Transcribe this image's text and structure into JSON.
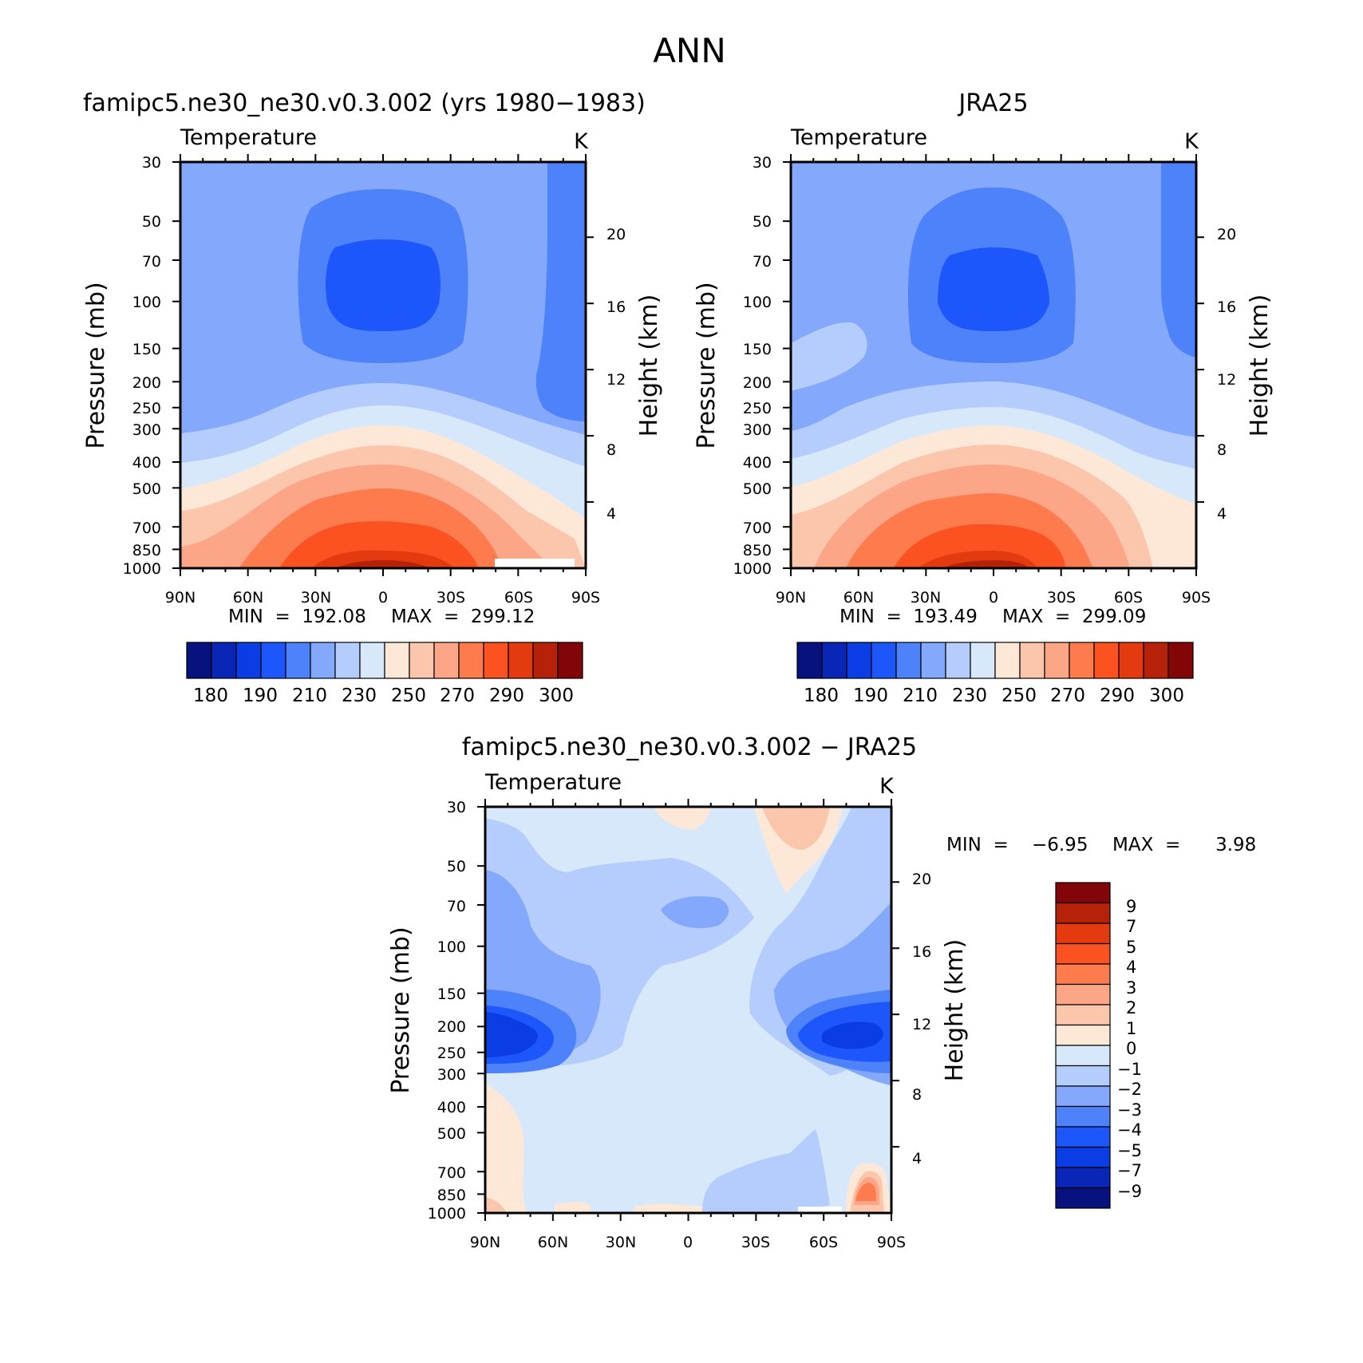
{
  "title": "ANN",
  "colors": {
    "warm": [
      "#fde8d8",
      "#fcc6ad",
      "#fca587",
      "#fd7b4d",
      "#fc5120",
      "#e33a10",
      "#b62109",
      "#820508"
    ],
    "cool": [
      "#d7e8fb",
      "#b4cdfc",
      "#84a9fc",
      "#4d82fb",
      "#1d57fc",
      "#0a3de3",
      "#0926b7",
      "#08127e"
    ]
  },
  "chart_data": [
    {
      "type": "contour",
      "title": "famipc5.ne30_ne30.v0.3.002 (yrs 1980−1983)",
      "variable_label": "Temperature",
      "units_label": "K",
      "ylabel": "Pressure (mb)",
      "y2label": "Height (km)",
      "x_ticks": [
        "90N",
        "60N",
        "30N",
        "0",
        "30S",
        "60S",
        "90S"
      ],
      "p_ticks": [
        30,
        50,
        70,
        100,
        150,
        200,
        250,
        300,
        400,
        500,
        700,
        850,
        1000
      ],
      "h_ticks": [
        20,
        16,
        12,
        8,
        4
      ],
      "min_label": "MIN  =  192.08",
      "max_label": "MAX  =  299.12",
      "levels": [
        180,
        185,
        190,
        200,
        210,
        220,
        230,
        240,
        250,
        260,
        270,
        280,
        290,
        295,
        300
      ],
      "colorbar_labels": [
        "180",
        "190",
        "210",
        "230",
        "250",
        "270",
        "290",
        "300"
      ]
    },
    {
      "type": "contour",
      "title": "JRA25",
      "variable_label": "Temperature",
      "units_label": "K",
      "ylabel": "Pressure (mb)",
      "y2label": "Height (km)",
      "x_ticks": [
        "90N",
        "60N",
        "30N",
        "0",
        "30S",
        "60S",
        "90S"
      ],
      "p_ticks": [
        30,
        50,
        70,
        100,
        150,
        200,
        250,
        300,
        400,
        500,
        700,
        850,
        1000
      ],
      "h_ticks": [
        20,
        16,
        12,
        8,
        4
      ],
      "min_label": "MIN  =  193.49",
      "max_label": "MAX  =  299.09",
      "levels": [
        180,
        185,
        190,
        200,
        210,
        220,
        230,
        240,
        250,
        260,
        270,
        280,
        290,
        295,
        300
      ],
      "colorbar_labels": [
        "180",
        "190",
        "210",
        "230",
        "250",
        "270",
        "290",
        "300"
      ]
    },
    {
      "type": "contour",
      "title": "famipc5.ne30_ne30.v0.3.002 − JRA25",
      "variable_label": "Temperature",
      "units_label": "K",
      "ylabel": "Pressure (mb)",
      "y2label": "Height (km)",
      "x_ticks": [
        "90N",
        "60N",
        "30N",
        "0",
        "30S",
        "60S",
        "90S"
      ],
      "p_ticks": [
        30,
        50,
        70,
        100,
        150,
        200,
        250,
        300,
        400,
        500,
        700,
        850,
        1000
      ],
      "h_ticks": [
        20,
        16,
        12,
        8,
        4
      ],
      "min_label": "MIN  =    −6.95",
      "max_label": "MAX  =      3.98",
      "levels": [
        -9,
        -7,
        -5,
        -4,
        -3,
        -2,
        -1,
        0,
        1,
        2,
        3,
        4,
        5,
        7,
        9
      ],
      "colorbar_labels": [
        "9",
        "7",
        "5",
        "4",
        "3",
        "2",
        "1",
        "0",
        "−1",
        "−2",
        "−3",
        "−4",
        "−5",
        "−7",
        "−9"
      ]
    }
  ]
}
